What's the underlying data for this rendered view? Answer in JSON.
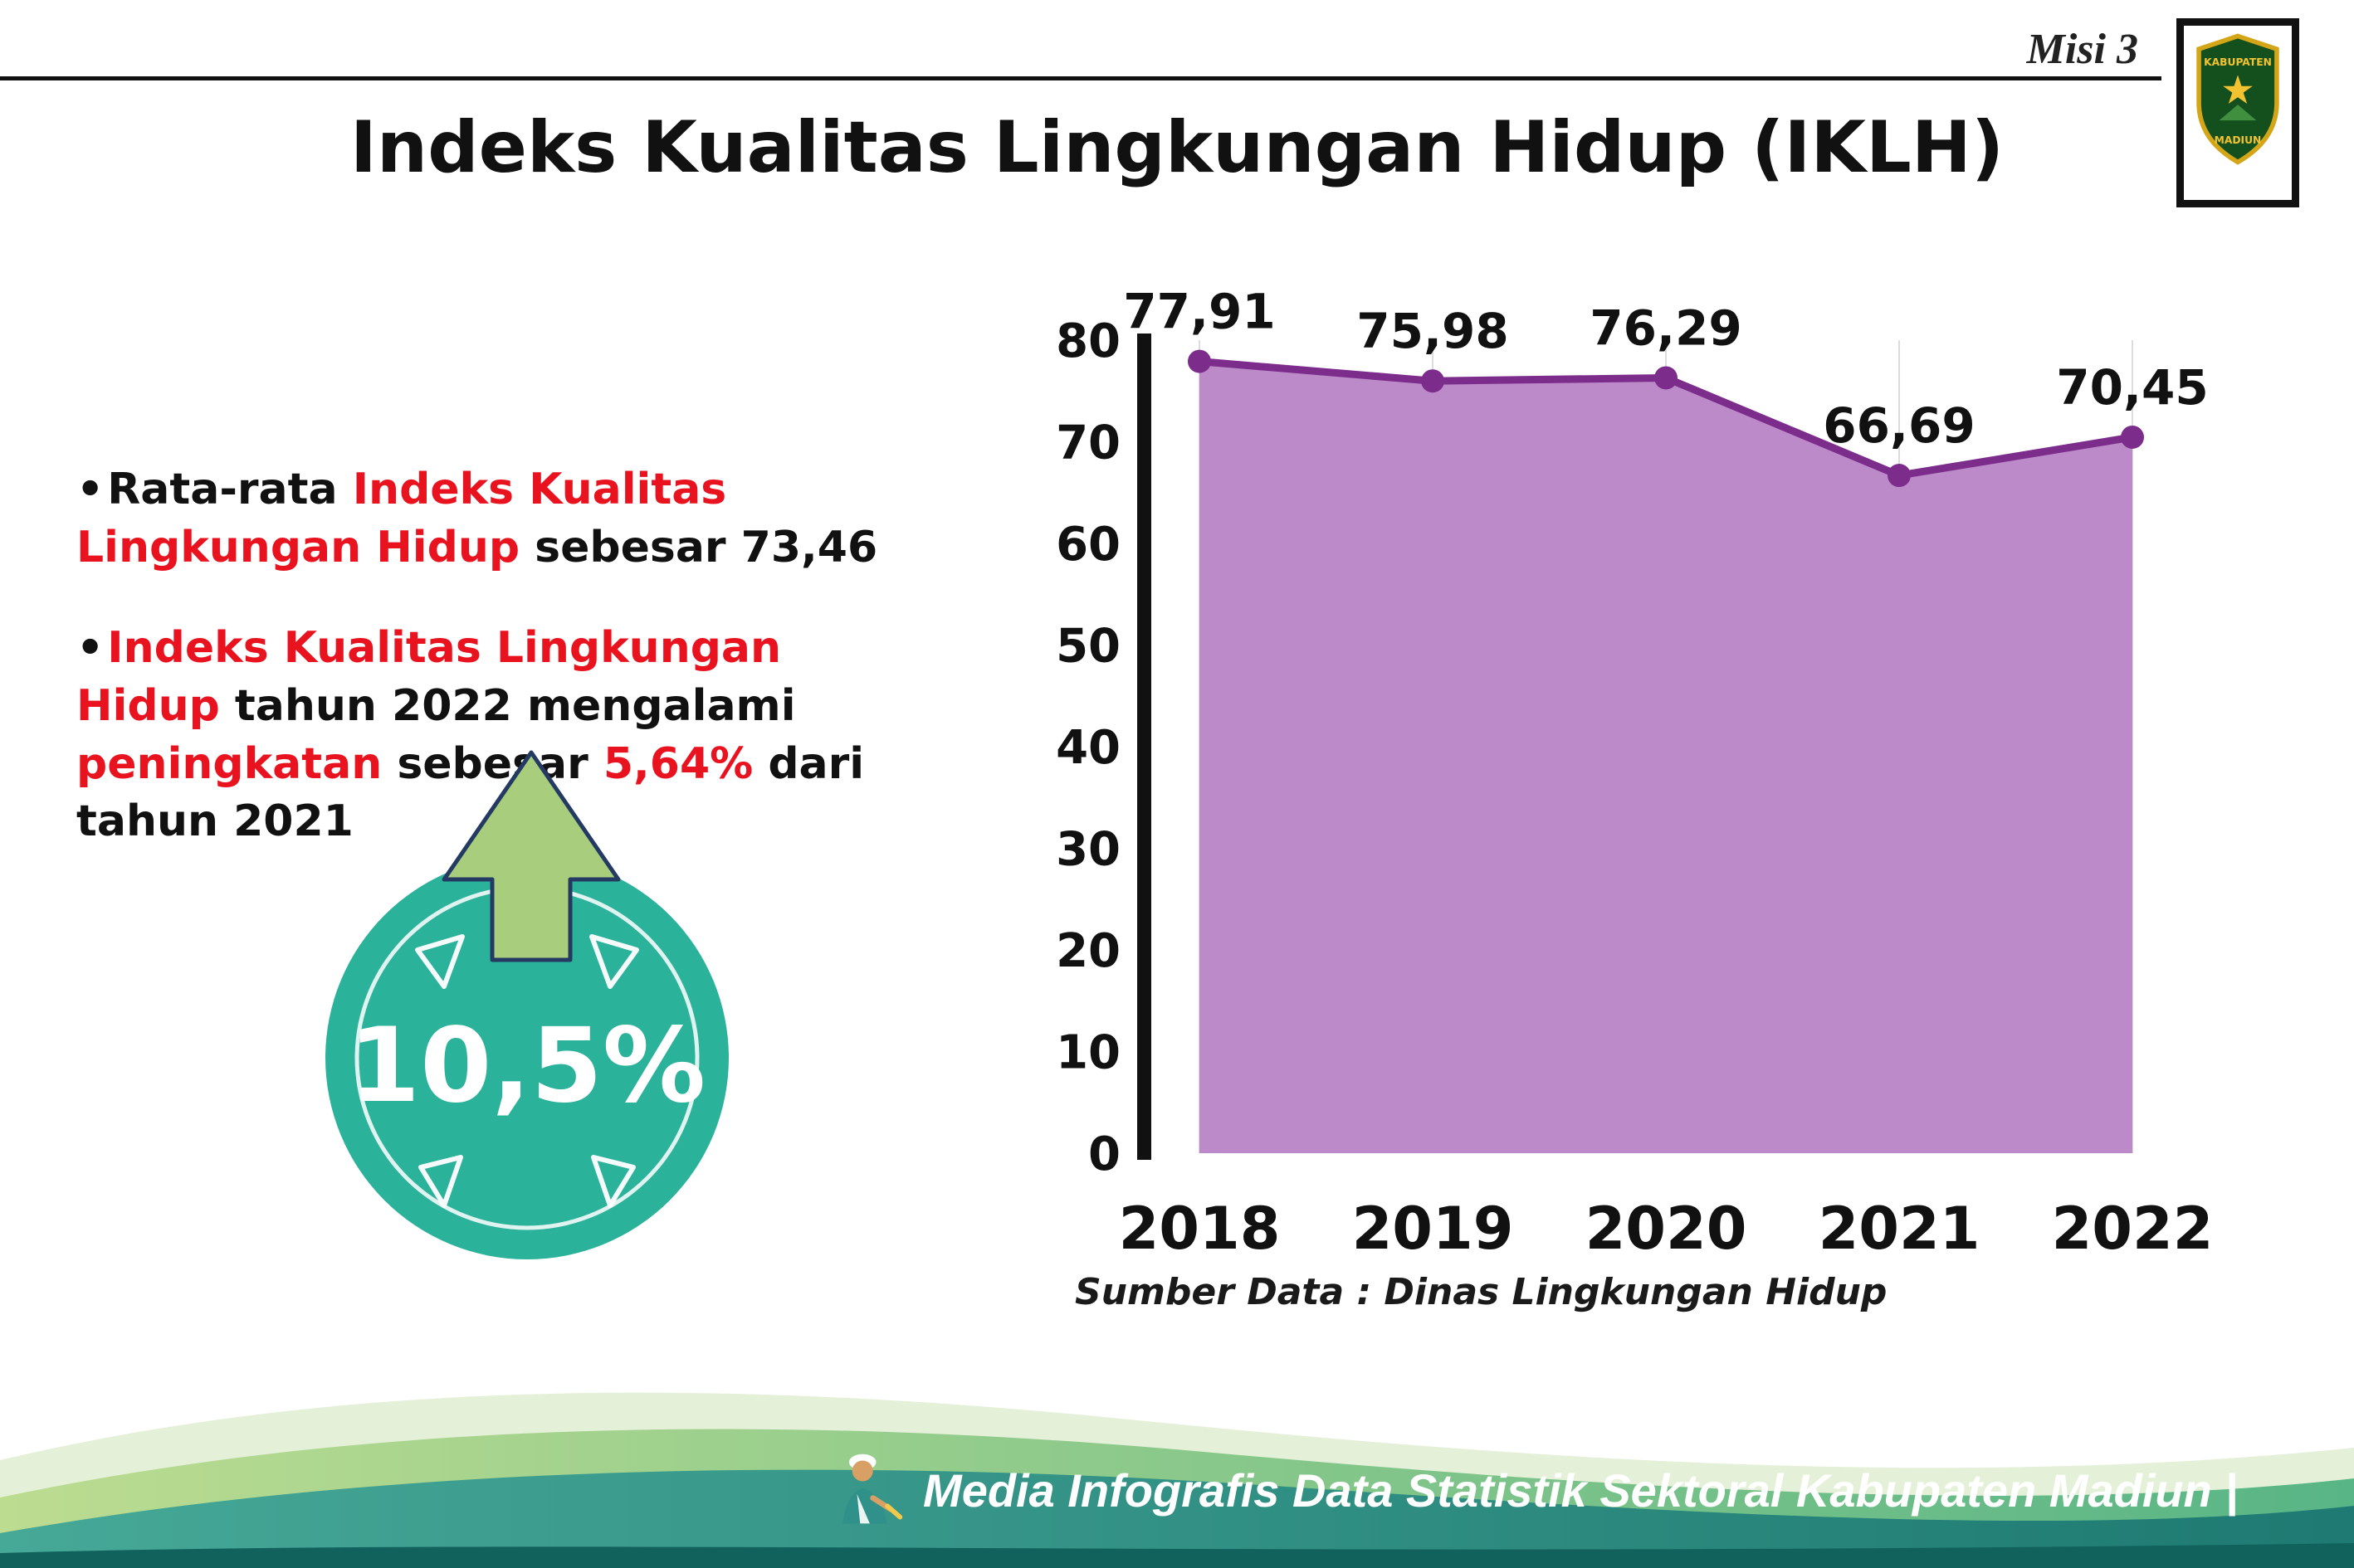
{
  "header": {
    "misi": "Misi 3",
    "title": "Indeks Kualitas Lingkungan Hidup (IKLH)",
    "logo": {
      "line1": "KABUPATEN",
      "line2": "MADIUN"
    }
  },
  "bullets": {
    "marker": "•",
    "item1": {
      "parts": [
        {
          "text": "Rata-rata "
        },
        {
          "text": "Indeks Kualitas Lingkungan Hidup",
          "emphasis": true
        },
        {
          "text": " sebesar 73,46"
        }
      ]
    },
    "item2": {
      "parts": [
        {
          "text": "Indeks Kualitas Lingkungan Hidup",
          "emphasis": true
        },
        {
          "text": " tahun 2022 mengalami "
        },
        {
          "text": "peningkatan",
          "emphasis": true
        },
        {
          "text": " sebesar "
        },
        {
          "text": "5,64%",
          "emphasis": true
        },
        {
          "text": " dari tahun 2021"
        }
      ]
    }
  },
  "badge": {
    "value": "10,5%"
  },
  "chart_data": {
    "type": "area",
    "title": "",
    "categories": [
      "2018",
      "2019",
      "2020",
      "2021",
      "2022"
    ],
    "values": [
      77.91,
      75.98,
      76.29,
      66.69,
      70.45
    ],
    "labels": [
      "77,91",
      "75,98",
      "76,29",
      "66,69",
      "70,45"
    ],
    "ylim": [
      0,
      80
    ],
    "yticks": [
      0,
      10,
      20,
      30,
      40,
      50,
      60,
      70,
      80
    ],
    "grid": "vertical-light",
    "legend": "none",
    "line_color": "#7c2d8c",
    "fill_color": "#bc8ac8",
    "source": "Sumber Data : Dinas Lingkungan Hidup"
  },
  "colors": {
    "accent_red": "#e8131f",
    "badge_teal": "#2bb29a",
    "arrow_green": "#a8cd7d",
    "footer_teal": "#2b8c82"
  },
  "footer": {
    "text": "Media Infografis Data Statistik Sektoral Kabupaten Madiun |"
  }
}
